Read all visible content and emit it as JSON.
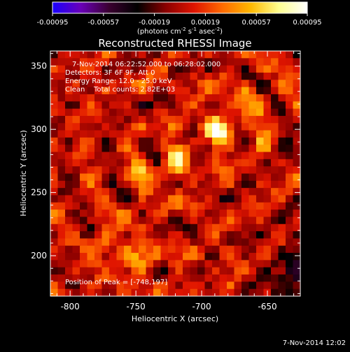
{
  "chart_data": {
    "type": "heatmap",
    "title": "Reconstructed RHESSI Image",
    "xlabel": "Heliocentric X (arcsec)",
    "ylabel": "Heliocentric Y (arcsec)",
    "xlim": [
      -815,
      -625
    ],
    "ylim": [
      168,
      362
    ],
    "xticks": [
      -800,
      -750,
      -700,
      -650
    ],
    "yticks": [
      200,
      250,
      300,
      350
    ],
    "colorbar": {
      "label_parts": [
        "(photons cm",
        "-2",
        " s",
        "-1",
        " asec",
        "-2",
        ")"
      ],
      "range": [
        -0.00095,
        0.00095
      ],
      "ticks": [
        -0.00095,
        -0.00057,
        -0.00019,
        0.00019,
        0.00057,
        0.00095
      ],
      "tick_labels": [
        "-0.00095",
        "-0.00057",
        "-0.00019",
        "0.00019",
        "0.00057",
        "0.00095"
      ],
      "colormap": [
        "#1a00ff",
        "#6a00b8",
        "#3a0030",
        "#000000",
        "#8a0000",
        "#e01400",
        "#ff6a00",
        "#ffb800",
        "#ffff90",
        "#ffffff"
      ]
    },
    "sources": [
      {
        "x": -687,
        "y": 300,
        "weight": 1.0
      },
      {
        "x": -720,
        "y": 275,
        "weight": 0.7
      },
      {
        "x": -750,
        "y": 198,
        "weight": 0.65
      },
      {
        "x": -770,
        "y": 210,
        "weight": 0.45
      },
      {
        "x": -745,
        "y": 262,
        "weight": 0.45
      },
      {
        "x": -665,
        "y": 320,
        "weight": 0.4
      }
    ],
    "annotations": {
      "time_range": "7-Nov-2014 06:22:52.000 to 06:28:02.000",
      "detectors": "Detectors: 3F 6F 9F, Att 0",
      "energy_range": "Energy Range: 12.0 - 25.0 keV",
      "method": "Clean",
      "total_counts": "Total counts: 2.82E+03",
      "peak": "Position of Peak = [-748,197]"
    }
  },
  "footer": {
    "timestamp": "7-Nov-2014 12:02"
  }
}
